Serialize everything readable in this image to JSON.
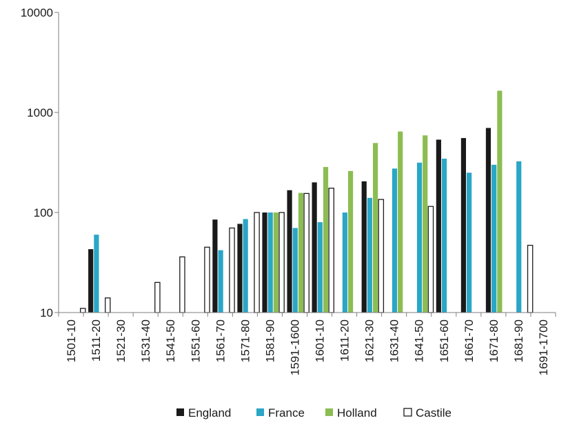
{
  "chart_data": {
    "type": "bar",
    "yscale": "log",
    "ylim": [
      10,
      10000
    ],
    "y_ticks": [
      "10",
      "100",
      "1000",
      "10000"
    ],
    "grid": false,
    "legend_position": "bottom",
    "categories": [
      "1501-10",
      "1511-20",
      "1521-30",
      "1531-40",
      "1541-50",
      "1551-60",
      "1561-70",
      "1571-80",
      "1581-90",
      "1591-1600",
      "1601-10",
      "1611-20",
      "1621-30",
      "1631-40",
      "1641-50",
      "1651-60",
      "1661-70",
      "1671-80",
      "1681-90",
      "1691-1700"
    ],
    "series": [
      {
        "name": "England",
        "color": "#1a1a1a",
        "values": [
          null,
          43,
          null,
          null,
          null,
          null,
          85,
          77,
          100,
          167,
          200,
          null,
          205,
          null,
          null,
          535,
          555,
          700,
          null,
          null
        ]
      },
      {
        "name": "France",
        "color": "#2aa6c6",
        "values": [
          null,
          60,
          null,
          null,
          null,
          null,
          42,
          86,
          100,
          70,
          80,
          100,
          140,
          275,
          315,
          345,
          250,
          300,
          325,
          null
        ]
      },
      {
        "name": "Holland",
        "color": "#8cbd52",
        "values": [
          null,
          null,
          null,
          null,
          null,
          null,
          null,
          null,
          100,
          157,
          285,
          260,
          495,
          645,
          590,
          null,
          null,
          1650,
          null,
          null
        ]
      },
      {
        "name": "Castile",
        "color": "#ffffff",
        "values": [
          11,
          14,
          null,
          20,
          36,
          45,
          70,
          100,
          100,
          155,
          175,
          null,
          135,
          null,
          115,
          null,
          null,
          null,
          47,
          null
        ]
      }
    ]
  }
}
